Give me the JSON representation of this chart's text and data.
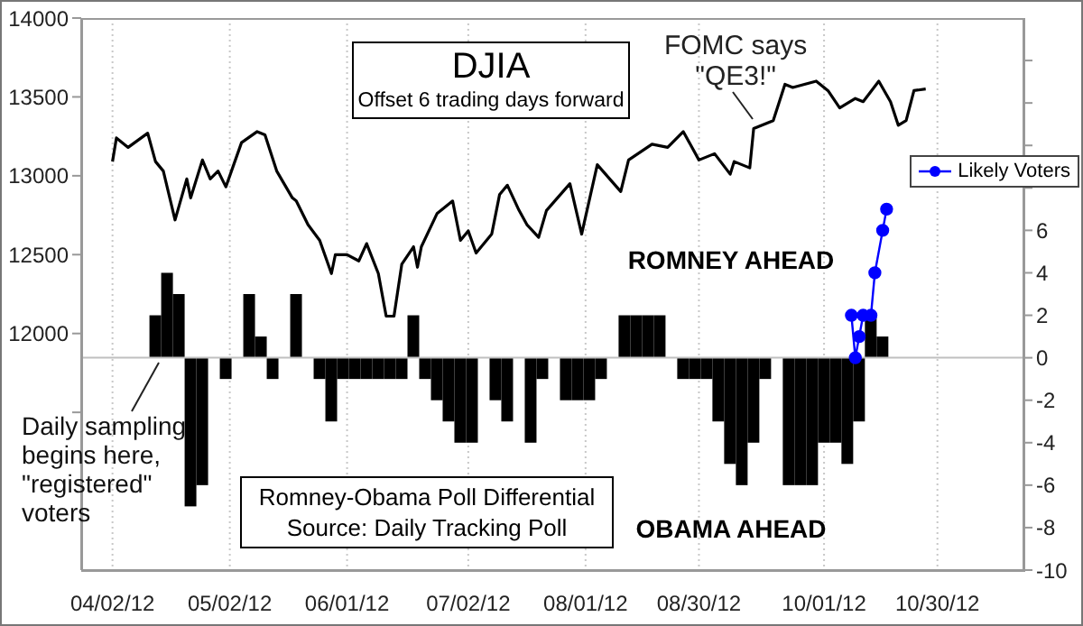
{
  "chart_data": {
    "type": "line",
    "title": "DJIA",
    "subtitle": "Offset 6 trading days forward",
    "xlim": [
      "2012-03-25",
      "2012-11-21"
    ],
    "xticks": [
      {
        "value": "2012-04-02",
        "label": "04/02/12"
      },
      {
        "value": "2012-05-02",
        "label": "05/02/12"
      },
      {
        "value": "2012-06-01",
        "label": "06/01/12"
      },
      {
        "value": "2012-07-02",
        "label": "07/02/12"
      },
      {
        "value": "2012-08-01",
        "label": "08/01/12"
      },
      {
        "value": "2012-08-30",
        "label": "08/30/12"
      },
      {
        "value": "2012-10-01",
        "label": "10/01/12"
      },
      {
        "value": "2012-10-30",
        "label": "10/30/12"
      }
    ],
    "ylim": [
      10500,
      14000
    ],
    "yticks": [
      {
        "value": 11500,
        "label": null
      },
      12000,
      12500,
      13000,
      13500,
      14000
    ],
    "y2lim": [
      -10,
      16
    ],
    "y2ticks": [
      -10,
      -8,
      -6,
      -4,
      -2,
      0,
      2,
      4,
      6,
      {
        "value": 8,
        "label": null
      },
      {
        "value": 10,
        "label": null
      },
      {
        "value": 12,
        "label": null
      },
      {
        "value": 14,
        "label": null
      }
    ],
    "grid": "x",
    "legend": "right",
    "ref_lines": [
      {
        "axis": "y2",
        "value": 0,
        "color": "#c0c0c0"
      }
    ],
    "annotations": [
      {
        "text": "FOMC says\n\"QE3!\"",
        "x": "2012-09-13",
        "y": 13300
      },
      "ROMNEY AHEAD",
      "OBAMA AHEAD",
      "Daily sampling begins here, \"registered\" voters",
      "Romney-Obama Poll Differential",
      "Source: Daily Tracking Poll"
    ],
    "series": [
      {
        "type": "bar",
        "axis": "y2",
        "color": "#000000",
        "x": [
          "2012-04-13",
          "2012-04-16",
          "2012-04-19",
          "2012-04-22",
          "2012-04-25",
          "2012-04-28",
          "2012-05-01",
          "2012-05-04",
          "2012-05-07",
          "2012-05-10",
          "2012-05-13",
          "2012-05-16",
          "2012-05-19",
          "2012-05-22",
          "2012-05-25",
          "2012-05-28",
          "2012-05-31",
          "2012-06-03",
          "2012-06-06",
          "2012-06-09",
          "2012-06-12",
          "2012-06-15",
          "2012-06-18",
          "2012-06-21",
          "2012-06-24",
          "2012-06-27",
          "2012-06-30",
          "2012-07-03",
          "2012-07-06",
          "2012-07-09",
          "2012-07-12",
          "2012-07-15",
          "2012-07-18",
          "2012-07-21",
          "2012-07-24",
          "2012-07-27",
          "2012-07-30",
          "2012-08-02",
          "2012-08-05",
          "2012-08-08",
          "2012-08-11",
          "2012-08-14",
          "2012-08-17",
          "2012-08-20",
          "2012-08-23",
          "2012-08-26",
          "2012-08-29",
          "2012-09-01",
          "2012-09-04",
          "2012-09-07",
          "2012-09-10",
          "2012-09-13",
          "2012-09-16",
          "2012-09-19",
          "2012-09-22",
          "2012-09-25",
          "2012-09-28",
          "2012-10-01",
          "2012-10-04",
          "2012-10-07",
          "2012-10-10",
          "2012-10-13",
          "2012-10-16"
        ],
        "values": [
          2,
          4,
          3,
          -7,
          -6,
          0,
          -1,
          0,
          3,
          1,
          -1,
          0,
          3,
          0,
          -1,
          -3,
          -1,
          -1,
          -1,
          -1,
          -1,
          -1,
          2,
          -1,
          -2,
          -3,
          -4,
          -4,
          0,
          -2,
          -3,
          0,
          -4,
          -1,
          0,
          -2,
          -2,
          -2,
          -1,
          0,
          2,
          2,
          2,
          2,
          0,
          -1,
          -1,
          -1,
          -3,
          -5,
          -6,
          -4,
          -1,
          0,
          -6,
          -6,
          -6,
          -4,
          -4,
          -5,
          -3,
          2,
          1
        ]
      },
      {
        "marker": "none",
        "color": "#000000",
        "x": [
          "2012-04-02",
          "2012-04-03",
          "2012-04-06",
          "2012-04-11",
          "2012-04-13",
          "2012-04-15",
          "2012-04-18",
          "2012-04-21",
          "2012-04-22",
          "2012-04-25",
          "2012-04-27",
          "2012-04-29",
          "2012-05-01",
          "2012-05-05",
          "2012-05-09",
          "2012-05-11",
          "2012-05-14",
          "2012-05-18",
          "2012-05-19",
          "2012-05-22",
          "2012-05-25",
          "2012-05-28",
          "2012-05-29",
          "2012-06-01",
          "2012-06-04",
          "2012-06-06",
          "2012-06-09",
          "2012-06-11",
          "2012-06-13",
          "2012-06-15",
          "2012-06-18",
          "2012-06-19",
          "2012-06-20",
          "2012-06-24",
          "2012-06-28",
          "2012-06-30",
          "2012-07-02",
          "2012-07-04",
          "2012-07-08",
          "2012-07-10",
          "2012-07-12",
          "2012-07-15",
          "2012-07-17",
          "2012-07-20",
          "2012-07-22",
          "2012-07-28",
          "2012-07-31",
          "2012-08-04",
          "2012-08-10",
          "2012-08-12",
          "2012-08-18",
          "2012-08-22",
          "2012-08-26",
          "2012-08-30",
          "2012-09-03",
          "2012-09-07",
          "2012-09-08",
          "2012-09-12",
          "2012-09-13",
          "2012-09-18",
          "2012-09-21",
          "2012-09-23",
          "2012-09-29",
          "2012-10-02",
          "2012-10-05",
          "2012-10-09",
          "2012-10-11",
          "2012-10-15",
          "2012-10-18",
          "2012-10-20",
          "2012-10-22",
          "2012-10-24",
          "2012-10-27"
        ],
        "values": [
          13090,
          13240,
          13180,
          13270,
          13090,
          13030,
          12720,
          12980,
          12860,
          13100,
          12980,
          13030,
          12930,
          13210,
          13280,
          13260,
          13030,
          12860,
          12840,
          12690,
          12590,
          12380,
          12500,
          12500,
          12460,
          12570,
          12380,
          12110,
          12110,
          12440,
          12550,
          12420,
          12550,
          12760,
          12840,
          12590,
          12650,
          12510,
          12630,
          12880,
          12940,
          12780,
          12690,
          12610,
          12780,
          12950,
          12630,
          13070,
          12900,
          13100,
          13200,
          13180,
          13280,
          13100,
          13140,
          13010,
          13090,
          13050,
          13300,
          13350,
          13580,
          13560,
          13600,
          13540,
          13430,
          13490,
          13470,
          13600,
          13470,
          13320,
          13350,
          13540,
          13550
        ]
      },
      {
        "name": "Likely Voters",
        "type": "line",
        "axis": "y2",
        "marker": "circle",
        "color": "#0000ff",
        "x": [
          "2012-10-08",
          "2012-10-09",
          "2012-10-10",
          "2012-10-11",
          "2012-10-13",
          "2012-10-14",
          "2012-10-16",
          "2012-10-17"
        ],
        "values": [
          2,
          0,
          1,
          2,
          2,
          4,
          6,
          7
        ]
      }
    ]
  }
}
